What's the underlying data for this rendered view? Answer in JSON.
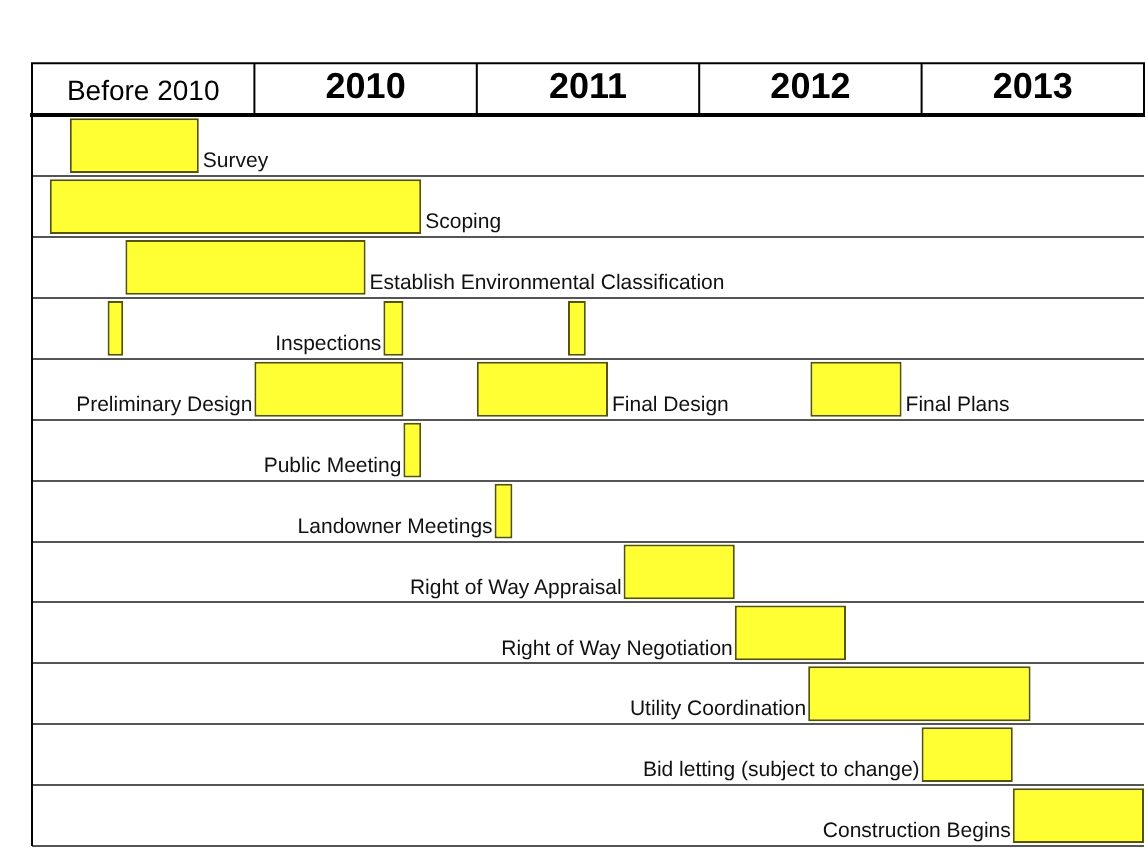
{
  "chart_data": {
    "type": "bar",
    "orientation": "horizontal",
    "categories": [
      "Survey",
      "Scoping",
      "Establish Environmental Classification",
      "Inspections",
      "Preliminary Design",
      "Public Meeting",
      "Landowner Meetings",
      "Right of Way Appraisal",
      "Right of Way Negotiation",
      "Utility Coordination",
      "Bid letting (subject to change)",
      "Construction Begins"
    ],
    "series": [
      {
        "color": "#ffff33",
        "base": [
          2009.17,
          2009.08,
          2009.42,
          2009.34,
          2010.0,
          2010.67,
          2011.08,
          2011.66,
          2012.16,
          2012.49,
          2013.0,
          2013.41
        ],
        "values": [
          0.58,
          1.67,
          1.08,
          0.07,
          0.67,
          0.08,
          0.08,
          0.5,
          0.5,
          1.0,
          0.41,
          0.59
        ]
      },
      {
        "color": "#ffff33",
        "base": [
          null,
          null,
          null,
          2010.58,
          2011.0,
          null,
          null,
          null,
          null,
          null,
          null,
          null
        ],
        "values": [
          null,
          null,
          null,
          0.09,
          0.59,
          null,
          null,
          null,
          null,
          null,
          null,
          null
        ]
      },
      {
        "color": "#ffff33",
        "base": [
          null,
          null,
          null,
          2011.41,
          2012.5,
          null,
          null,
          null,
          null,
          null,
          null,
          null
        ],
        "values": [
          null,
          null,
          null,
          0.08,
          0.41,
          null,
          null,
          null,
          null,
          null,
          null,
          null
        ]
      }
    ],
    "xlim": [
      2009,
      2014
    ],
    "xticks": [
      {
        "value": 2009.5,
        "label": "Before 2010"
      },
      {
        "value": 2010.5,
        "label": "2010"
      },
      {
        "value": 2011.5,
        "label": "2011"
      },
      {
        "value": 2012.5,
        "label": "2012"
      },
      {
        "value": 2013.5,
        "label": "2013"
      }
    ],
    "annotations": [
      {
        "text": "Final Design",
        "x": 2011.59,
        "y": "Preliminary Design"
      },
      {
        "text": "Final Plans",
        "x": 2012.91,
        "y": "Preliminary Design"
      }
    ],
    "grid": "y",
    "legend": false,
    "tick_labels": "x"
  }
}
